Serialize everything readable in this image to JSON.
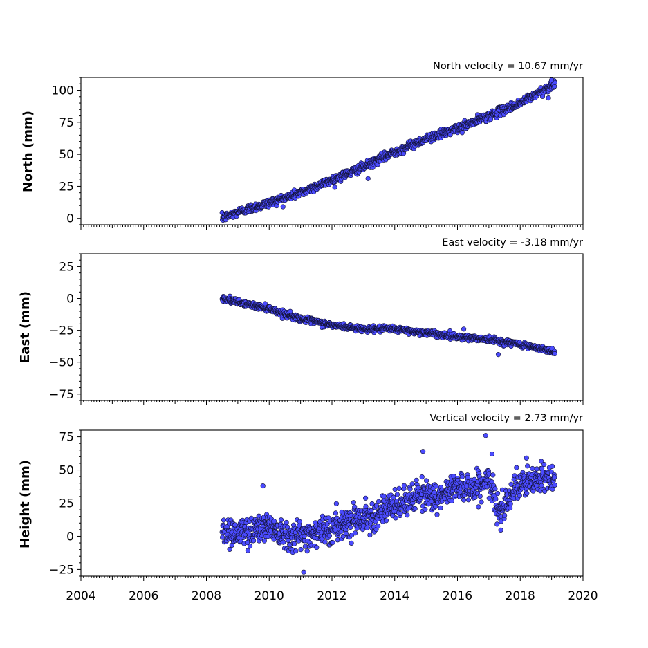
{
  "figure": {
    "x_ticks": [
      "2004",
      "2006",
      "2008",
      "2010",
      "2012",
      "2014",
      "2016",
      "2018",
      "2020"
    ],
    "x_tick_values": [
      2004,
      2006,
      2008,
      2010,
      2012,
      2014,
      2016,
      2018,
      2020
    ]
  },
  "chart_data": [
    {
      "type": "scatter",
      "title": "North velocity = 10.67 mm/yr",
      "ylabel": "North (mm)",
      "xlim": [
        2004,
        2020
      ],
      "ylim": [
        -5,
        110
      ],
      "yticks": [
        0,
        25,
        50,
        75,
        100
      ],
      "series": [
        {
          "color": "#4b4bff",
          "start": 2008.5,
          "end": 2019.1,
          "interval": 0.01,
          "trend_knots_x": [
            2008.5,
            2009.0,
            2010.0,
            2011.0,
            2012.0,
            2013.0,
            2014.0,
            2015.0,
            2016.0,
            2017.0,
            2018.0,
            2019.1
          ],
          "trend_knots_y": [
            0,
            5,
            12,
            20,
            30,
            40,
            52,
            62,
            70,
            80,
            90,
            105
          ],
          "noise_std": 1.6,
          "outliers": [
            [
              2013.15,
              31
            ],
            [
              2018.9,
              94
            ],
            [
              2019.0,
              108
            ]
          ]
        }
      ]
    },
    {
      "type": "scatter",
      "title": "East velocity = -3.18 mm/yr",
      "ylabel": "East (mm)",
      "xlim": [
        2004,
        2020
      ],
      "ylim": [
        -80,
        35
      ],
      "yticks": [
        -75,
        -50,
        -25,
        0,
        25
      ],
      "series": [
        {
          "color": "#4b4bff",
          "start": 2008.5,
          "end": 2019.1,
          "interval": 0.01,
          "trend_knots_x": [
            2008.5,
            2009.0,
            2010.0,
            2011.0,
            2012.0,
            2013.0,
            2014.0,
            2015.0,
            2016.0,
            2017.0,
            2018.0,
            2019.1
          ],
          "trend_knots_y": [
            0,
            -3,
            -8,
            -16,
            -21,
            -24,
            -24,
            -27,
            -30,
            -32,
            -36,
            -42
          ],
          "noise_std": 1.1,
          "outliers": [
            [
              2016.2,
              -24
            ],
            [
              2017.3,
              -44
            ]
          ]
        }
      ]
    },
    {
      "type": "scatter",
      "title": "Vertical velocity = 2.73 mm/yr",
      "ylabel": "Height (mm)",
      "xlim": [
        2004,
        2020
      ],
      "ylim": [
        -30,
        80
      ],
      "yticks": [
        -25,
        0,
        25,
        50,
        75
      ],
      "series": [
        {
          "color": "#4b4bff",
          "start": 2008.5,
          "end": 2019.1,
          "interval": 0.01,
          "trend_knots_x": [
            2008.5,
            2009.0,
            2009.5,
            2010.0,
            2010.5,
            2011.0,
            2011.5,
            2012.0,
            2012.5,
            2013.0,
            2013.5,
            2014.0,
            2014.5,
            2015.0,
            2015.5,
            2016.0,
            2016.5,
            2017.0,
            2017.3,
            2017.7,
            2018.0,
            2018.5,
            2019.1
          ],
          "trend_knots_y": [
            5,
            2,
            5,
            8,
            2,
            0,
            4,
            5,
            12,
            14,
            18,
            22,
            28,
            32,
            28,
            40,
            36,
            42,
            18,
            33,
            38,
            42,
            45
          ],
          "noise_std": 5.5,
          "outliers": [
            [
              2009.8,
              38
            ],
            [
              2011.1,
              -27
            ],
            [
              2014.9,
              64
            ],
            [
              2016.9,
              76
            ],
            [
              2017.1,
              62
            ],
            [
              2018.2,
              59
            ]
          ]
        }
      ]
    }
  ]
}
